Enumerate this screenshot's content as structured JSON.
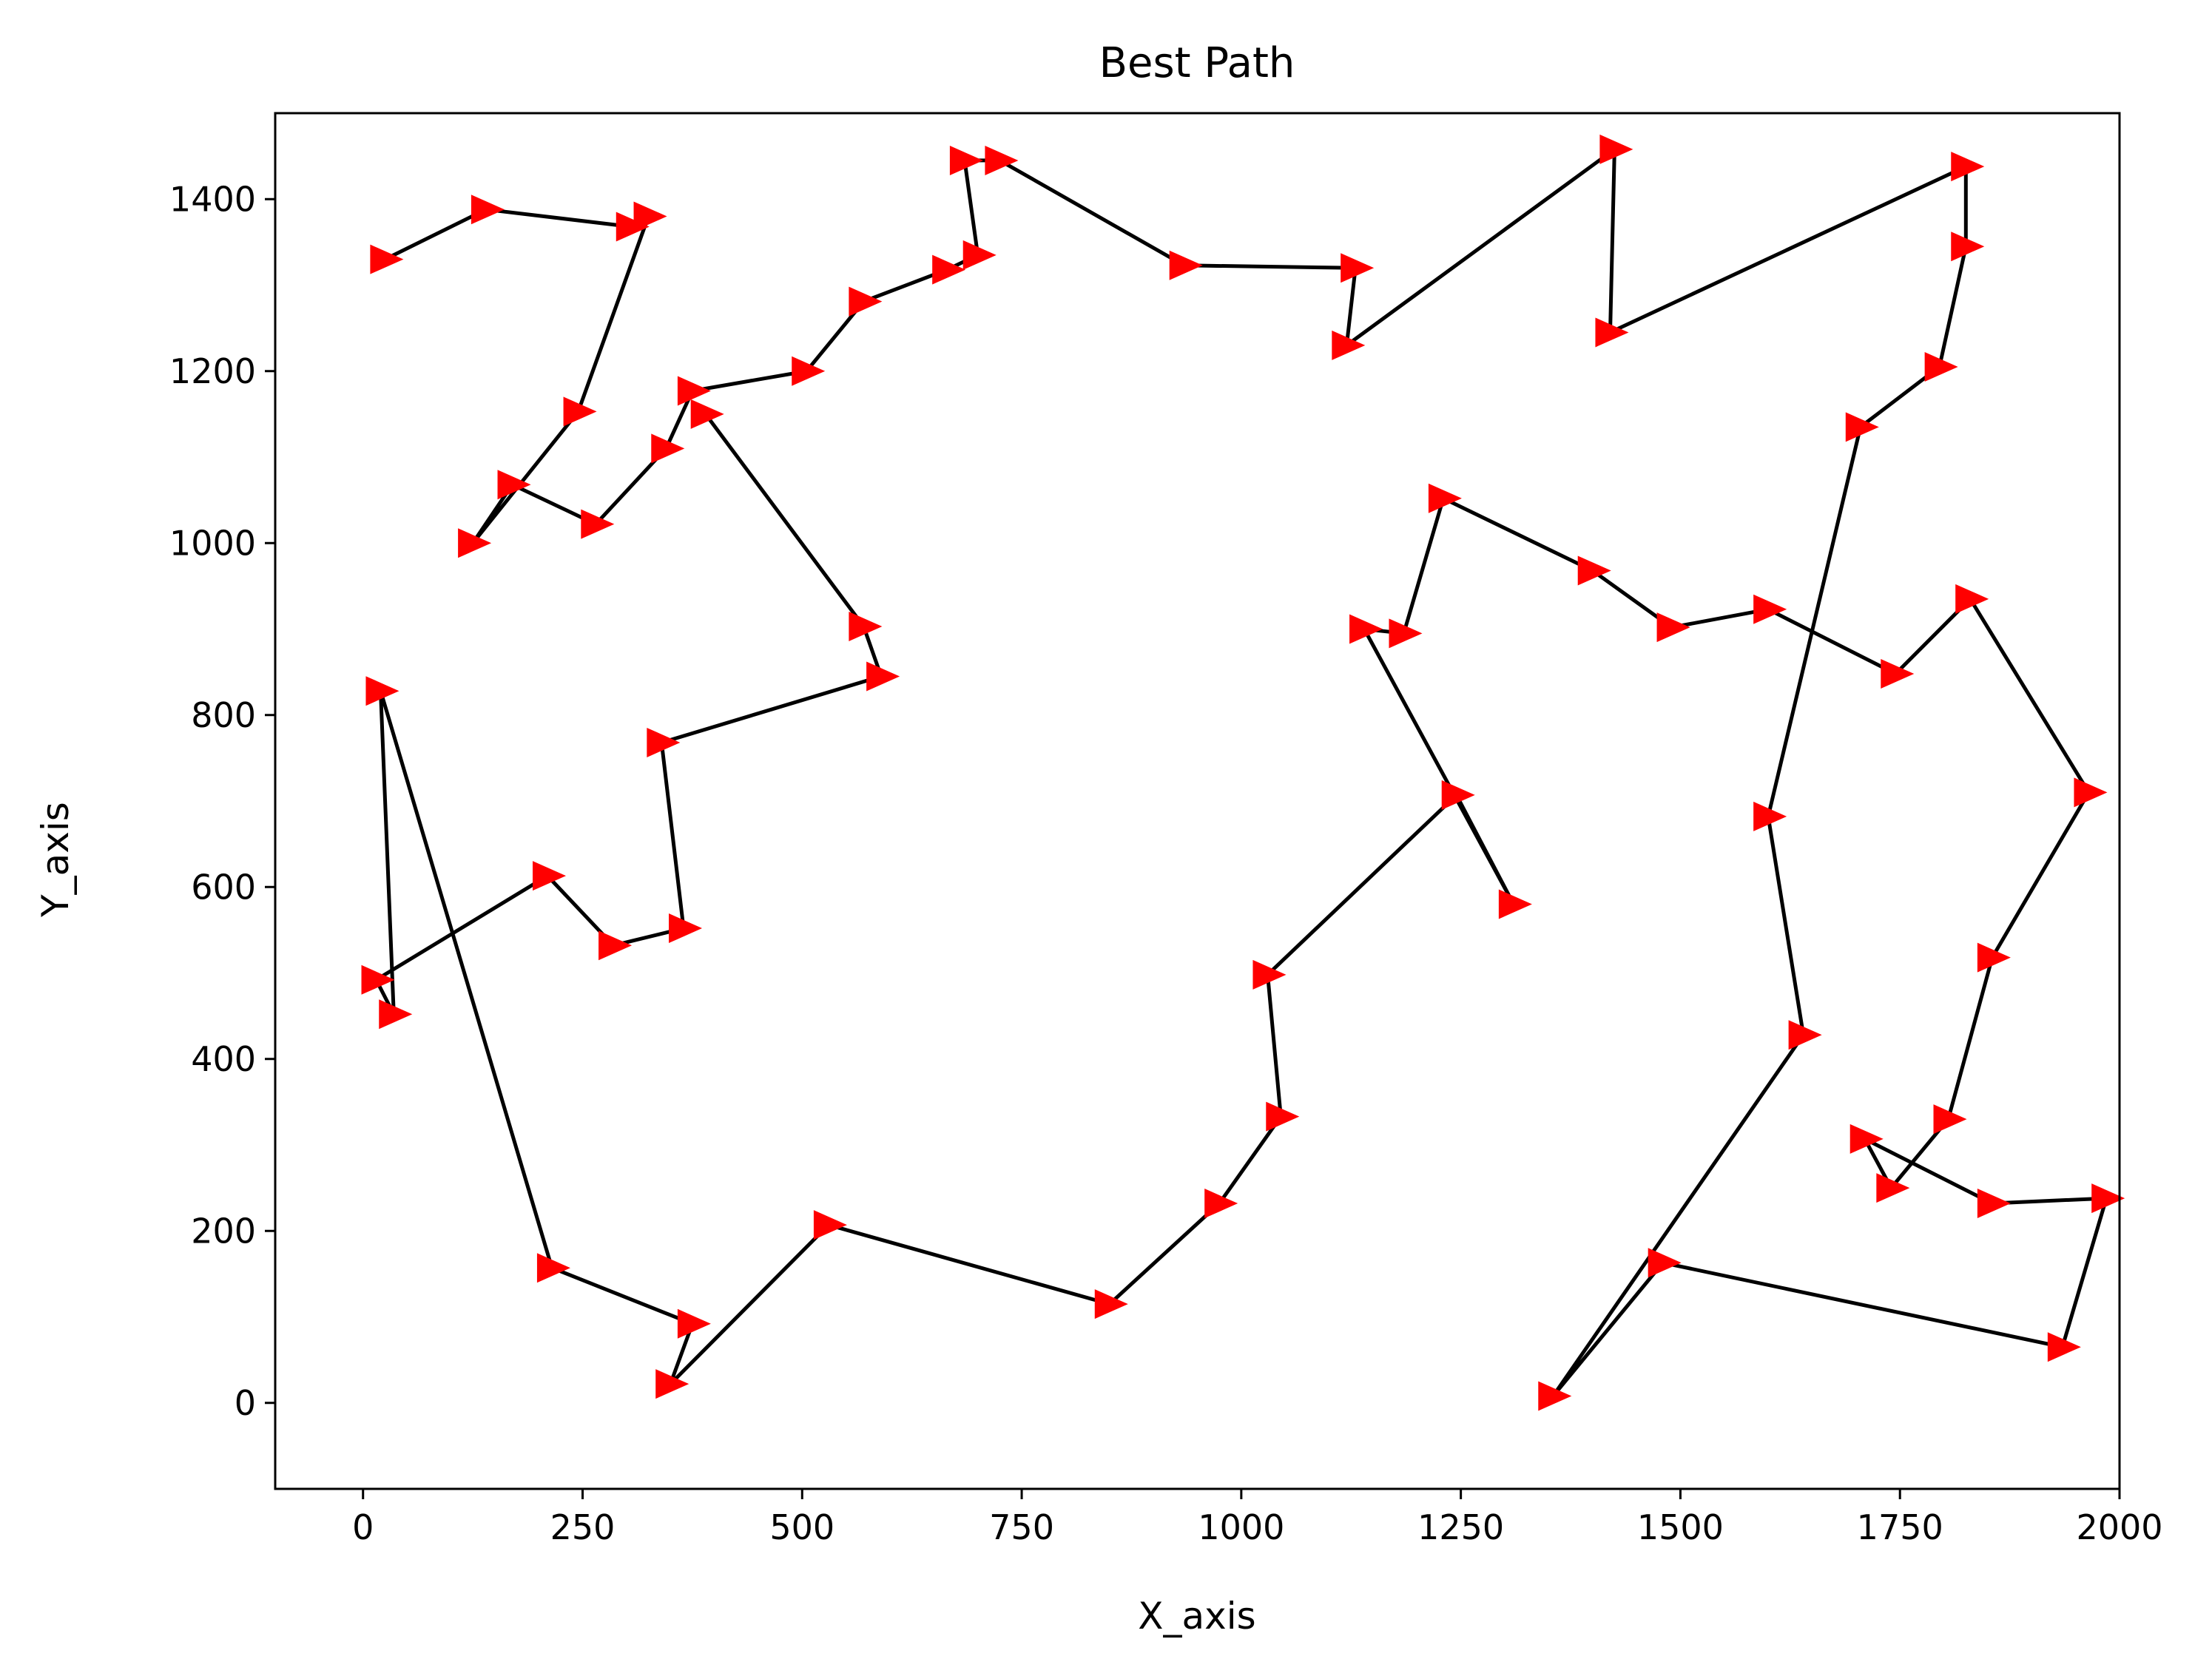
{
  "chart_data": {
    "type": "line",
    "title": "Best Path",
    "xlabel": "X_axis",
    "ylabel": "Y_axis",
    "xlim": [
      -100,
      2000
    ],
    "ylim": [
      -100,
      1500
    ],
    "xticks": [
      0,
      250,
      500,
      750,
      1000,
      1250,
      1500,
      1750,
      2000
    ],
    "yticks": [
      0,
      200,
      400,
      600,
      800,
      1000,
      1200,
      1400
    ],
    "grid": false,
    "marker": "triangle-right",
    "marker_color": "#ff0000",
    "line_color": "#000000",
    "path": [
      [
        25,
        1330
      ],
      [
        140,
        1388
      ],
      [
        305,
        1368
      ],
      [
        325,
        1380
      ],
      [
        245,
        1153
      ],
      [
        125,
        1000
      ],
      [
        170,
        1068
      ],
      [
        265,
        1022
      ],
      [
        345,
        1110
      ],
      [
        375,
        1177
      ],
      [
        505,
        1200
      ],
      [
        570,
        1281
      ],
      [
        665,
        1318
      ],
      [
        700,
        1335
      ],
      [
        685,
        1445
      ],
      [
        725,
        1445
      ],
      [
        935,
        1323
      ],
      [
        1130,
        1320
      ],
      [
        1120,
        1230
      ],
      [
        1425,
        1458
      ],
      [
        1420,
        1245
      ],
      [
        1825,
        1438
      ],
      [
        1825,
        1345
      ],
      [
        1795,
        1205
      ],
      [
        1705,
        1135
      ],
      [
        1600,
        682
      ],
      [
        1640,
        428
      ],
      [
        1355,
        8
      ],
      [
        1480,
        163
      ],
      [
        1935,
        65
      ],
      [
        1985,
        238
      ],
      [
        1855,
        232
      ],
      [
        1710,
        307
      ],
      [
        1740,
        250
      ],
      [
        1805,
        330
      ],
      [
        1855,
        518
      ],
      [
        1965,
        710
      ],
      [
        1830,
        935
      ],
      [
        1745,
        848
      ],
      [
        1600,
        923
      ],
      [
        1490,
        902
      ],
      [
        1400,
        968
      ],
      [
        1230,
        1052
      ],
      [
        1185,
        895
      ],
      [
        1140,
        900
      ],
      [
        1310,
        580
      ],
      [
        1245,
        707
      ],
      [
        1030,
        498
      ],
      [
        1045,
        333
      ],
      [
        975,
        232
      ],
      [
        850,
        115
      ],
      [
        530,
        207
      ],
      [
        350,
        22
      ],
      [
        375,
        92
      ],
      [
        215,
        157
      ],
      [
        20,
        828
      ],
      [
        35,
        452
      ],
      [
        15,
        492
      ],
      [
        210,
        613
      ],
      [
        285,
        532
      ],
      [
        365,
        552
      ],
      [
        340,
        768
      ],
      [
        590,
        845
      ],
      [
        570,
        903
      ],
      [
        390,
        1150
      ]
    ]
  }
}
